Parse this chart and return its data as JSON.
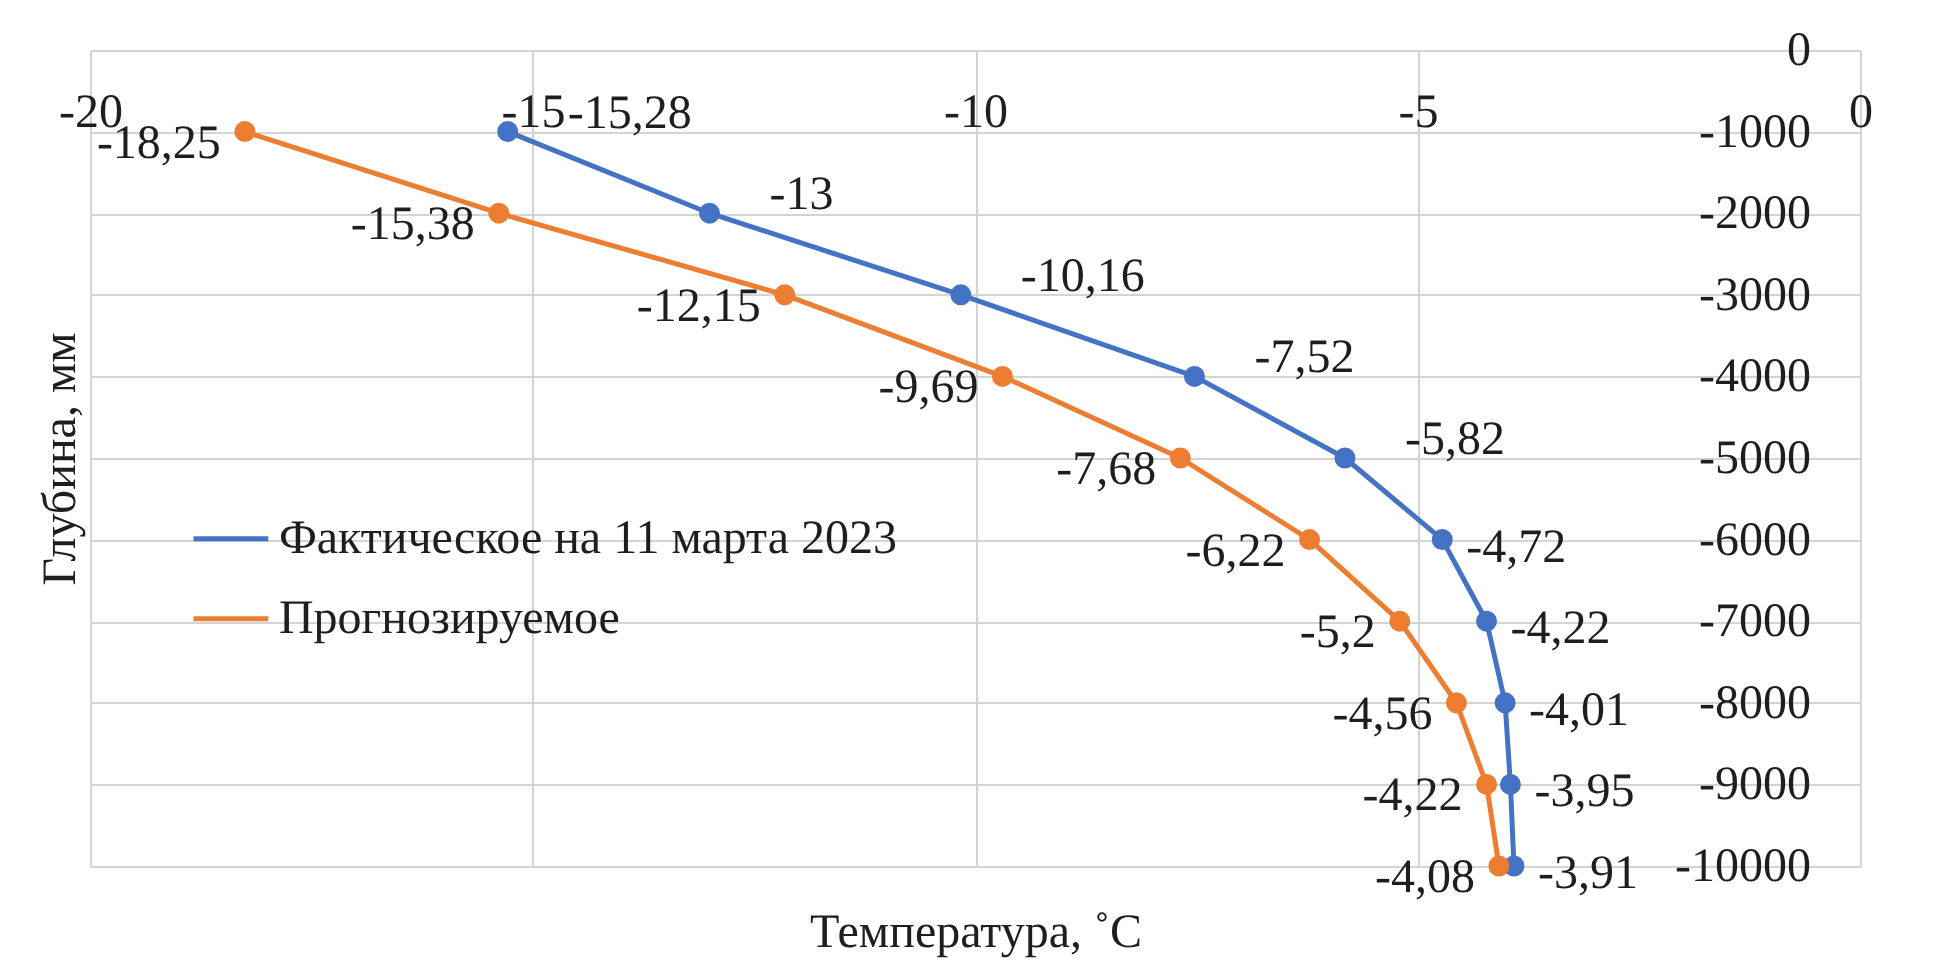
{
  "chart_data": {
    "type": "line",
    "orientation": "horizontal",
    "xlabel": "Температура, ˚С",
    "ylabel": "Глубина, мм",
    "xlim": [
      -20,
      0
    ],
    "xticks": [
      -20,
      -15,
      -10,
      -5,
      0
    ],
    "ylim": [
      -10000,
      0
    ],
    "yticks": [
      -10000,
      -9000,
      -8000,
      -7000,
      -6000,
      -5000,
      -4000,
      -3000,
      -2000,
      -1000,
      0
    ],
    "grid": true,
    "legend": "left",
    "marker": "circle",
    "line_style": "solid",
    "series": [
      {
        "name": "Фактическое на 11 марта 2023",
        "color": "#4472c4",
        "x": [
          -1000,
          -2000,
          -3000,
          -4000,
          -5000,
          -6000,
          -7000,
          -8000,
          -9000,
          -10000
        ],
        "values": [
          -15.28,
          -13,
          -10.16,
          -7.52,
          -5.82,
          -4.72,
          -4.22,
          -4.01,
          -3.95,
          -3.91
        ],
        "value_labels": [
          "-15,28",
          "-13",
          "-10,16",
          "-7,52",
          "-5,82",
          "-4,72",
          "-4,22",
          "-4,01",
          "-3,95",
          "-3,91"
        ]
      },
      {
        "name": "Прогнозируемое",
        "color": "#ed7d31",
        "x": [
          -1000,
          -2000,
          -3000,
          -4000,
          -5000,
          -6000,
          -7000,
          -8000,
          -9000,
          -10000
        ],
        "values": [
          -18.25,
          -15.38,
          -12.15,
          -9.69,
          -7.68,
          -6.22,
          -5.2,
          -4.56,
          -4.22,
          -4.08
        ],
        "value_labels": [
          "-18,25",
          "-15,38",
          "-12,15",
          "-9,69",
          "-7,68",
          "-6,22",
          "-5,2",
          "-4,56",
          "-4,22",
          "-4,08"
        ]
      }
    ]
  }
}
